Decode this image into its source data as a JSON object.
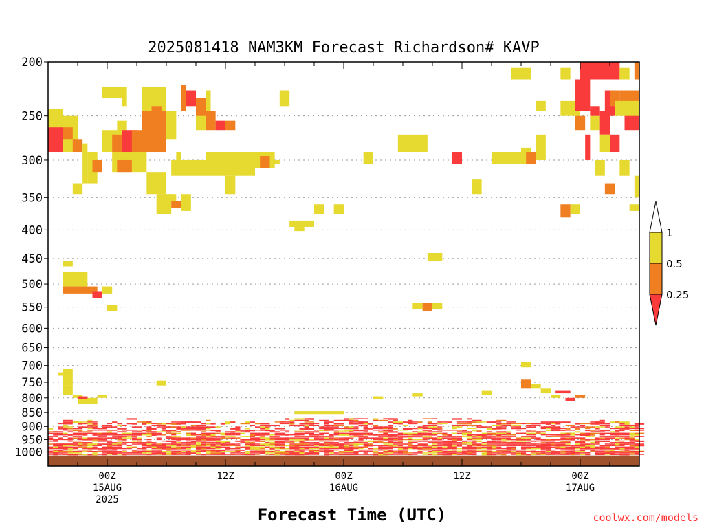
{
  "chart_data": {
    "type": "heatmap",
    "title": "2025081418 NAM3KM Forecast Richardson# KAVP",
    "xlabel": "Forecast Time (UTC)",
    "ylabel": "",
    "y_scale": "log-pressure (inverted)",
    "y_range": [
      1060,
      200
    ],
    "y_ticks": [
      "200",
      "250",
      "300",
      "350",
      "400",
      "450",
      "500",
      "550",
      "600",
      "650",
      "700",
      "750",
      "800",
      "850",
      "900",
      "950",
      "1000"
    ],
    "x_range_hours": [
      0,
      60
    ],
    "x_ticks": [
      {
        "hour": 6,
        "lines": [
          "00Z",
          "15AUG",
          "2025"
        ]
      },
      {
        "hour": 18,
        "lines": [
          "12Z"
        ]
      },
      {
        "hour": 30,
        "lines": [
          "00Z",
          "16AUG"
        ]
      },
      {
        "hour": 42,
        "lines": [
          "12Z"
        ]
      },
      {
        "hour": 54,
        "lines": [
          "00Z",
          "17AUG"
        ]
      }
    ],
    "grid": "dotted horizontal at pressure ticks",
    "legend": {
      "placement": "right",
      "levels": [
        "1",
        "0.5",
        "0.25"
      ],
      "colors": {
        "above_1": "#ffffff",
        "0.5_to_1": "#e6d930",
        "0.25_to_0.5": "#f07f22",
        "below_0.25": "#fa3b3b"
      }
    },
    "ground_color": "#a0522d",
    "ground_top_hpa": 1015,
    "cells_units": "[hour_start, hour_end, p_top_hPa, p_bottom_hPa, category] category: 1=0.5-1 (yellow), 2=0.25-0.5 (orange), 3=<0.25 (red)",
    "cells": [
      [
        0,
        1.5,
        243,
        290,
        1
      ],
      [
        1.5,
        3,
        250,
        290,
        1
      ],
      [
        0,
        1.5,
        262,
        290,
        3
      ],
      [
        1.5,
        2.5,
        262,
        275,
        2
      ],
      [
        2.5,
        3.5,
        275,
        290,
        2
      ],
      [
        3.5,
        4,
        280,
        330,
        1
      ],
      [
        4,
        5,
        290,
        330,
        1
      ],
      [
        4.5,
        5.5,
        300,
        315,
        2
      ],
      [
        2.5,
        3.5,
        330,
        345,
        1
      ],
      [
        5.5,
        8,
        222,
        232,
        1
      ],
      [
        7.5,
        8,
        232,
        240,
        1
      ],
      [
        5.5,
        7,
        265,
        290,
        1
      ],
      [
        7,
        8,
        255,
        300,
        1
      ],
      [
        6.5,
        7.5,
        270,
        290,
        2
      ],
      [
        6.5,
        10,
        290,
        315,
        1
      ],
      [
        7,
        8.5,
        300,
        315,
        2
      ],
      [
        7.5,
        9,
        265,
        290,
        3
      ],
      [
        8.5,
        10,
        265,
        290,
        2
      ],
      [
        9.5,
        12,
        222,
        245,
        1
      ],
      [
        10,
        13,
        245,
        275,
        1
      ],
      [
        9.5,
        12,
        245,
        290,
        2
      ],
      [
        10.5,
        11.5,
        240,
        250,
        2
      ],
      [
        10,
        12,
        315,
        345,
        1
      ],
      [
        11,
        12.5,
        345,
        375,
        1
      ],
      [
        12,
        13,
        345,
        355,
        1
      ],
      [
        12.5,
        13.5,
        355,
        365,
        2
      ],
      [
        13.5,
        14.5,
        345,
        370,
        1
      ],
      [
        12.5,
        16,
        300,
        320,
        1
      ],
      [
        13,
        13.5,
        290,
        300,
        1
      ],
      [
        13.5,
        14,
        220,
        245,
        2
      ],
      [
        14,
        15,
        225,
        240,
        3
      ],
      [
        15,
        16,
        232,
        252,
        2
      ],
      [
        16,
        16.5,
        225,
        245,
        1
      ],
      [
        16,
        17,
        245,
        265,
        2
      ],
      [
        17,
        18,
        255,
        265,
        3
      ],
      [
        18,
        19,
        255,
        265,
        2
      ],
      [
        15,
        16,
        250,
        265,
        1
      ],
      [
        16,
        20,
        290,
        320,
        1
      ],
      [
        18,
        19,
        320,
        345,
        1
      ],
      [
        20,
        21,
        290,
        320,
        1
      ],
      [
        21,
        23,
        290,
        310,
        1
      ],
      [
        21.5,
        22.5,
        295,
        310,
        2
      ],
      [
        22.5,
        23.5,
        300,
        305,
        1
      ],
      [
        23.5,
        24.5,
        225,
        240,
        1
      ],
      [
        24.5,
        27,
        385,
        395,
        1
      ],
      [
        25,
        26,
        395,
        402,
        1
      ],
      [
        27,
        28,
        360,
        375,
        1
      ],
      [
        29,
        30,
        360,
        375,
        1
      ],
      [
        32,
        33,
        290,
        305,
        1
      ],
      [
        35.5,
        38.5,
        270,
        290,
        1
      ],
      [
        37,
        38,
        540,
        555,
        1
      ],
      [
        38,
        39,
        540,
        560,
        2
      ],
      [
        39,
        40,
        540,
        555,
        1
      ],
      [
        38.5,
        40,
        440,
        455,
        1
      ],
      [
        41,
        42,
        290,
        305,
        3
      ],
      [
        43,
        44,
        325,
        345,
        1
      ],
      [
        45,
        48,
        290,
        305,
        1
      ],
      [
        48,
        49,
        285,
        305,
        1
      ],
      [
        48.5,
        49.5,
        290,
        305,
        2
      ],
      [
        47,
        49,
        205,
        215,
        1
      ],
      [
        49.5,
        50.5,
        235,
        245,
        1
      ],
      [
        49.5,
        50.5,
        270,
        300,
        1
      ],
      [
        52,
        53,
        205,
        215,
        1
      ],
      [
        52,
        54,
        235,
        250,
        1
      ],
      [
        54,
        58,
        200,
        215,
        3
      ],
      [
        53.5,
        55,
        215,
        245,
        3
      ],
      [
        53.5,
        54.5,
        250,
        265,
        2
      ],
      [
        55,
        56,
        250,
        265,
        1
      ],
      [
        55,
        56,
        240,
        250,
        3
      ],
      [
        56,
        57,
        245,
        270,
        3
      ],
      [
        56.5,
        57.5,
        225,
        250,
        3
      ],
      [
        57,
        58,
        225,
        240,
        2
      ],
      [
        58,
        59,
        205,
        215,
        1
      ],
      [
        59.5,
        60,
        200,
        215,
        2
      ],
      [
        58,
        60,
        225,
        245,
        2
      ],
      [
        58.5,
        60,
        245,
        265,
        3
      ],
      [
        57.5,
        60,
        235,
        250,
        1
      ],
      [
        54.5,
        55,
        270,
        300,
        3
      ],
      [
        56,
        57,
        270,
        290,
        1
      ],
      [
        57,
        58,
        270,
        290,
        3
      ],
      [
        55.5,
        56.5,
        300,
        320,
        1
      ],
      [
        56.5,
        57.5,
        330,
        345,
        2
      ],
      [
        58,
        59,
        300,
        320,
        1
      ],
      [
        59.5,
        60,
        320,
        350,
        1
      ],
      [
        59,
        60,
        360,
        370,
        1
      ],
      [
        52,
        53,
        360,
        380,
        2
      ],
      [
        53,
        54,
        360,
        375,
        1
      ],
      [
        1.5,
        4,
        475,
        505,
        1
      ],
      [
        1.5,
        5,
        505,
        520,
        2
      ],
      [
        4.5,
        5.5,
        515,
        530,
        3
      ],
      [
        5.5,
        6.5,
        505,
        520,
        1
      ],
      [
        6,
        7,
        545,
        560,
        1
      ],
      [
        1.5,
        2.5,
        455,
        465,
        1
      ],
      [
        1,
        2,
        720,
        730,
        1
      ],
      [
        1.5,
        2.5,
        710,
        760,
        1
      ],
      [
        1.5,
        2.5,
        760,
        790,
        1
      ],
      [
        2.5,
        3.5,
        790,
        800,
        1
      ],
      [
        3,
        5,
        800,
        820,
        1
      ],
      [
        3,
        4,
        795,
        805,
        3
      ],
      [
        5,
        6,
        790,
        800,
        1
      ],
      [
        11,
        12,
        745,
        760,
        1
      ],
      [
        48,
        49,
        690,
        705,
        1
      ],
      [
        48,
        49,
        740,
        770,
        2
      ],
      [
        49,
        50,
        755,
        770,
        1
      ],
      [
        50,
        51,
        770,
        785,
        1
      ],
      [
        51.5,
        53,
        775,
        785,
        3
      ],
      [
        51,
        52,
        790,
        800,
        1
      ],
      [
        52.5,
        53.5,
        800,
        810,
        3
      ],
      [
        53.5,
        54.5,
        790,
        800,
        2
      ],
      [
        25,
        30,
        845,
        855,
        1
      ],
      [
        44,
        45,
        775,
        790,
        1
      ],
      [
        37,
        38,
        785,
        795,
        1
      ],
      [
        33,
        34,
        795,
        805,
        1
      ]
    ]
  }
}
